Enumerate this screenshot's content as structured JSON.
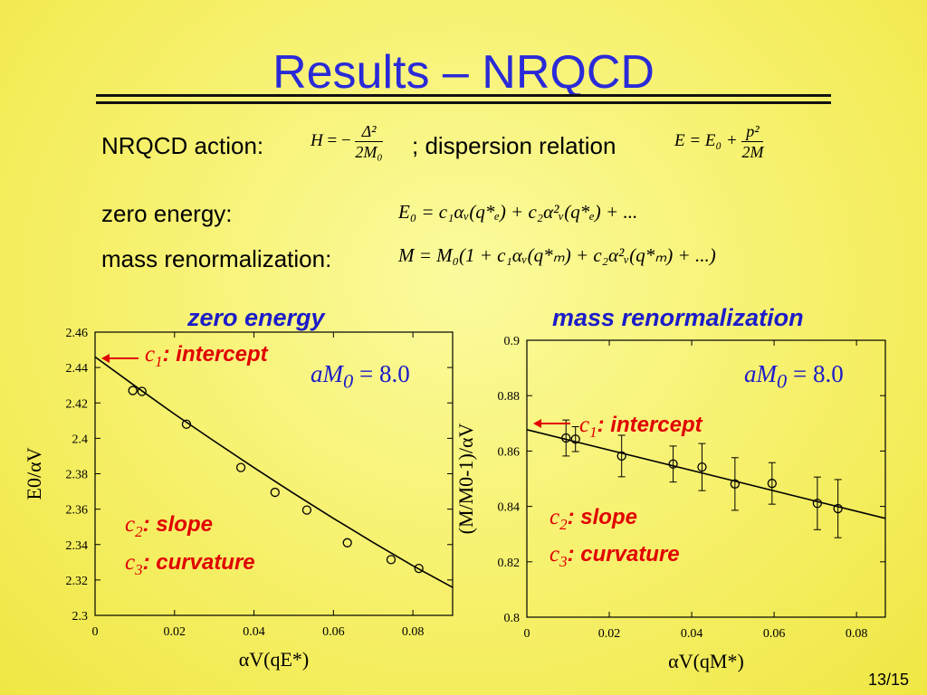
{
  "slide": {
    "title": "Results – NRQCD",
    "page_number": "13/15"
  },
  "equations": {
    "action_label": "NRQCD action:",
    "action_lhs": "H",
    "action_rhs_prefix": "= −",
    "action_num": "Δ²",
    "action_den": "2M₀",
    "dispersion_label": "; dispersion relation",
    "dispersion_lhs": "E = E₀ +",
    "dispersion_num": "p²",
    "dispersion_den": "2M",
    "zero_label": "zero energy:",
    "zero_eq": "E₀ = c₁αᵥ(q*ₑ) + c₂α²ᵥ(q*ₑ) + ...",
    "mass_label": "mass renormalization:",
    "mass_eq": "M = M₀(1 + c₁αᵥ(q*ₘ) + c₂α²ᵥ(q*ₘ) + ...)"
  },
  "chart_data": [
    {
      "type": "scatter",
      "title": "zero energy",
      "xlabel": "αV(qE*)",
      "ylabel": "E0/αV",
      "xlim": [
        0,
        0.09
      ],
      "ylim": [
        2.3,
        2.46
      ],
      "xticks": [
        "0",
        "0.02",
        "0.04",
        "0.06",
        "0.08"
      ],
      "yticks": [
        "2.3",
        "2.32",
        "2.34",
        "2.36",
        "2.38",
        "2.4",
        "2.42",
        "2.44",
        "2.46"
      ],
      "x": [
        0.0095,
        0.0118,
        0.023,
        0.0367,
        0.0453,
        0.0533,
        0.0635,
        0.0745,
        0.0815
      ],
      "y": [
        2.427,
        2.4265,
        2.408,
        2.3835,
        2.3695,
        2.3595,
        2.341,
        2.3315,
        2.3265
      ],
      "fit": {
        "x": [
          0,
          0.01,
          0.02,
          0.03,
          0.04,
          0.05,
          0.06,
          0.07,
          0.08,
          0.09
        ],
        "y": [
          2.446,
          2.4297,
          2.4137,
          2.3984,
          2.3834,
          2.3689,
          2.3548,
          2.3412,
          2.328,
          2.3158
        ]
      },
      "annotations": {
        "param": "aM",
        "param_sub": "0",
        "param_value": " = 8.0",
        "c1_var": "c",
        "c1_sub": "1",
        "c1_text": ": intercept",
        "c2_var": "c",
        "c2_sub": "2",
        "c2_text": ": slope",
        "c3_var": "c",
        "c3_sub": "3",
        "c3_text": ": curvature"
      }
    },
    {
      "type": "scatter",
      "title": "mass renormalization",
      "xlabel": "αV(qM*)",
      "ylabel": "(M/M0-1)/αV",
      "xlim": [
        0,
        0.087
      ],
      "ylim": [
        0.8,
        0.9
      ],
      "xticks": [
        "0",
        "0.02",
        "0.04",
        "0.06",
        "0.08"
      ],
      "yticks": [
        "0.8",
        "0.82",
        "0.84",
        "0.86",
        "0.88",
        "0.9"
      ],
      "x": [
        0.0095,
        0.0118,
        0.023,
        0.0355,
        0.0425,
        0.0505,
        0.0595,
        0.0705,
        0.0755
      ],
      "y": [
        0.8647,
        0.8643,
        0.8582,
        0.8553,
        0.8542,
        0.8481,
        0.8483,
        0.8411,
        0.8392
      ],
      "yerr": [
        0.0065,
        0.0045,
        0.0075,
        0.0065,
        0.0085,
        0.0095,
        0.0075,
        0.0095,
        0.0105
      ],
      "fit": {
        "x": [
          0,
          0.087
        ],
        "y": [
          0.8677,
          0.8357
        ]
      },
      "annotations": {
        "param": "aM",
        "param_sub": "0",
        "param_value": " = 8.0",
        "c1_var": "c",
        "c1_sub": "1",
        "c1_text": ": intercept",
        "c2_var": "c",
        "c2_sub": "2",
        "c2_text": ": slope",
        "c3_var": "c",
        "c3_sub": "3",
        "c3_text": ": curvature"
      }
    }
  ],
  "colors": {
    "title": "#2a2ad8",
    "annotation": "#e00000",
    "chart_title": "#1c1cc8"
  }
}
